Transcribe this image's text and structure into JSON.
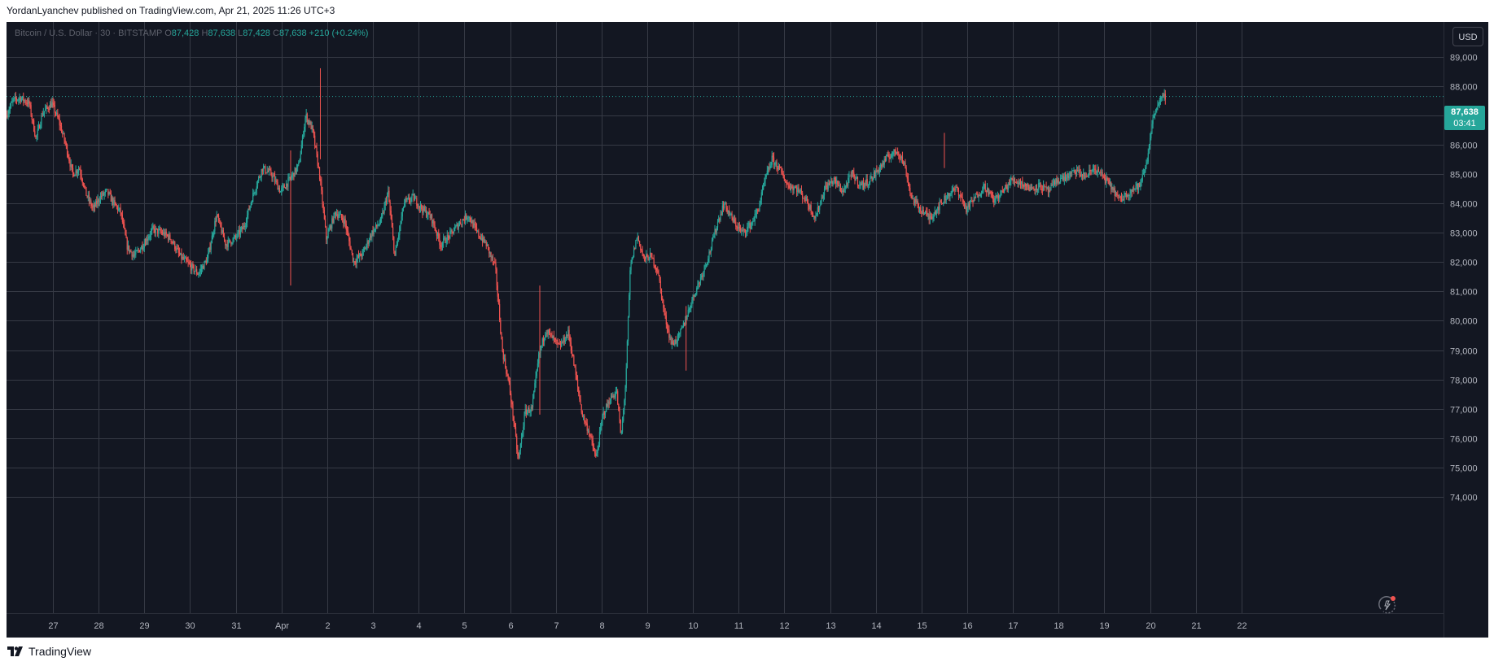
{
  "header": {
    "author": "YordanLyanchev",
    "published_text": "published on TradingView.com,",
    "datetime": "Apr 21, 2025 11:26 UTC+3"
  },
  "legend": {
    "symbol": "Bitcoin / U.S. Dollar · 30 · BITSTAMP",
    "o_label": "O",
    "o_value": "87,428",
    "h_label": "H",
    "h_value": "87,638",
    "l_label": "L",
    "l_value": "87,428",
    "c_label": "C",
    "c_value": "87,638",
    "change": "+210 (+0.24%)"
  },
  "currency_button": "USD",
  "price_tag": {
    "price": "87,638",
    "countdown": "03:41"
  },
  "footer": {
    "brand": "TradingView"
  },
  "colors": {
    "background": "#131722",
    "grid": "#363a45",
    "up": "#26a69a",
    "down": "#ef5350",
    "axis_text": "#b2b5be"
  },
  "icons": {
    "logo": "tradingview-logo-icon",
    "replay": "replay-icon"
  },
  "chart_data": {
    "type": "candlestick",
    "interval": "30",
    "ylim": [
      73300,
      89700
    ],
    "ytick_values": [
      74000,
      75000,
      76000,
      77000,
      78000,
      79000,
      80000,
      81000,
      82000,
      83000,
      84000,
      85000,
      86000,
      87000,
      88000,
      89000
    ],
    "ytick_labels": [
      "74,000",
      "75,000",
      "76,000",
      "77,000",
      "78,000",
      "79,000",
      "80,000",
      "81,000",
      "82,000",
      "83,000",
      "84,000",
      "85,000",
      "86,000",
      "87,000",
      "88,000",
      "89,000"
    ],
    "xlim": [
      -1.04,
      25.45
    ],
    "xticks": [
      {
        "pos": 0,
        "label": "27"
      },
      {
        "pos": 1,
        "label": "28"
      },
      {
        "pos": 2,
        "label": "29"
      },
      {
        "pos": 3,
        "label": "30"
      },
      {
        "pos": 4,
        "label": "31"
      },
      {
        "pos": 5,
        "label": "Apr"
      },
      {
        "pos": 6,
        "label": "2"
      },
      {
        "pos": 7,
        "label": "3"
      },
      {
        "pos": 8,
        "label": "4"
      },
      {
        "pos": 9,
        "label": "5"
      },
      {
        "pos": 10,
        "label": "6"
      },
      {
        "pos": 11,
        "label": "7"
      },
      {
        "pos": 12,
        "label": "8"
      },
      {
        "pos": 13,
        "label": "9"
      },
      {
        "pos": 14,
        "label": "10"
      },
      {
        "pos": 15,
        "label": "11"
      },
      {
        "pos": 16,
        "label": "12"
      },
      {
        "pos": 17,
        "label": "13"
      },
      {
        "pos": 18,
        "label": "14"
      },
      {
        "pos": 19,
        "label": "15"
      },
      {
        "pos": 20,
        "label": "16"
      },
      {
        "pos": 21,
        "label": "17"
      },
      {
        "pos": 22,
        "label": "18"
      },
      {
        "pos": 23,
        "label": "19"
      },
      {
        "pos": 24,
        "label": "20"
      },
      {
        "pos": 25,
        "label": "21"
      },
      {
        "pos": 26,
        "label": "22"
      }
    ],
    "last_price": 87638,
    "price_path": [
      [
        -1.0,
        87000
      ],
      [
        -0.85,
        87500
      ],
      [
        -0.7,
        87600
      ],
      [
        -0.5,
        87400
      ],
      [
        -0.35,
        86200
      ],
      [
        -0.2,
        87100
      ],
      [
        0.0,
        87400
      ],
      [
        0.15,
        86800
      ],
      [
        0.3,
        86000
      ],
      [
        0.45,
        85000
      ],
      [
        0.6,
        85200
      ],
      [
        0.75,
        84300
      ],
      [
        0.9,
        83800
      ],
      [
        1.05,
        84200
      ],
      [
        1.2,
        84400
      ],
      [
        1.35,
        84000
      ],
      [
        1.5,
        83700
      ],
      [
        1.65,
        82500
      ],
      [
        1.8,
        82200
      ],
      [
        2.0,
        82600
      ],
      [
        2.2,
        83100
      ],
      [
        2.4,
        83000
      ],
      [
        2.6,
        82800
      ],
      [
        2.8,
        82200
      ],
      [
        3.0,
        81900
      ],
      [
        3.2,
        81600
      ],
      [
        3.4,
        82100
      ],
      [
        3.6,
        83600
      ],
      [
        3.8,
        82600
      ],
      [
        4.0,
        82800
      ],
      [
        4.2,
        83200
      ],
      [
        4.4,
        84300
      ],
      [
        4.6,
        85200
      ],
      [
        4.8,
        85000
      ],
      [
        5.0,
        84400
      ],
      [
        5.2,
        84800
      ],
      [
        5.4,
        85300
      ],
      [
        5.55,
        87000
      ],
      [
        5.7,
        86500
      ],
      [
        5.85,
        85000
      ],
      [
        6.0,
        82800
      ],
      [
        6.2,
        83700
      ],
      [
        6.4,
        83400
      ],
      [
        6.6,
        82000
      ],
      [
        6.8,
        82300
      ],
      [
        7.0,
        83000
      ],
      [
        7.2,
        83400
      ],
      [
        7.35,
        84400
      ],
      [
        7.5,
        82200
      ],
      [
        7.7,
        84000
      ],
      [
        7.9,
        84200
      ],
      [
        8.1,
        83800
      ],
      [
        8.3,
        83500
      ],
      [
        8.5,
        82600
      ],
      [
        8.7,
        82900
      ],
      [
        8.9,
        83300
      ],
      [
        9.1,
        83600
      ],
      [
        9.3,
        83000
      ],
      [
        9.5,
        82600
      ],
      [
        9.7,
        81800
      ],
      [
        9.85,
        79000
      ],
      [
        10.0,
        77800
      ],
      [
        10.1,
        76600
      ],
      [
        10.2,
        75200
      ],
      [
        10.35,
        76900
      ],
      [
        10.5,
        77000
      ],
      [
        10.65,
        78800
      ],
      [
        10.8,
        79700
      ],
      [
        10.95,
        79400
      ],
      [
        11.1,
        79100
      ],
      [
        11.3,
        79600
      ],
      [
        11.45,
        78200
      ],
      [
        11.6,
        76800
      ],
      [
        11.75,
        76200
      ],
      [
        11.9,
        75300
      ],
      [
        12.05,
        76800
      ],
      [
        12.2,
        77300
      ],
      [
        12.35,
        77600
      ],
      [
        12.45,
        76000
      ],
      [
        12.55,
        77900
      ],
      [
        12.65,
        81800
      ],
      [
        12.8,
        82900
      ],
      [
        12.95,
        82100
      ],
      [
        13.1,
        82200
      ],
      [
        13.25,
        81700
      ],
      [
        13.4,
        80200
      ],
      [
        13.55,
        79200
      ],
      [
        13.7,
        79400
      ],
      [
        13.85,
        80000
      ],
      [
        14.0,
        80700
      ],
      [
        14.2,
        81500
      ],
      [
        14.4,
        82400
      ],
      [
        14.55,
        83300
      ],
      [
        14.7,
        84000
      ],
      [
        14.9,
        83400
      ],
      [
        15.1,
        83000
      ],
      [
        15.3,
        83300
      ],
      [
        15.45,
        83800
      ],
      [
        15.6,
        84800
      ],
      [
        15.75,
        85500
      ],
      [
        15.9,
        85200
      ],
      [
        16.1,
        84600
      ],
      [
        16.3,
        84500
      ],
      [
        16.5,
        84100
      ],
      [
        16.7,
        83500
      ],
      [
        16.9,
        84500
      ],
      [
        17.1,
        84800
      ],
      [
        17.3,
        84400
      ],
      [
        17.5,
        85000
      ],
      [
        17.7,
        84600
      ],
      [
        17.9,
        84800
      ],
      [
        18.1,
        85200
      ],
      [
        18.3,
        85600
      ],
      [
        18.5,
        85800
      ],
      [
        18.65,
        85300
      ],
      [
        18.8,
        84200
      ],
      [
        19.0,
        83800
      ],
      [
        19.2,
        83500
      ],
      [
        19.4,
        83900
      ],
      [
        19.6,
        84300
      ],
      [
        19.8,
        84500
      ],
      [
        20.0,
        83800
      ],
      [
        20.2,
        84200
      ],
      [
        20.4,
        84600
      ],
      [
        20.6,
        84100
      ],
      [
        20.8,
        84400
      ],
      [
        21.0,
        84800
      ],
      [
        21.2,
        84700
      ],
      [
        21.4,
        84500
      ],
      [
        21.6,
        84600
      ],
      [
        21.8,
        84400
      ],
      [
        22.0,
        84800
      ],
      [
        22.2,
        84900
      ],
      [
        22.4,
        85100
      ],
      [
        22.6,
        84900
      ],
      [
        22.8,
        85200
      ],
      [
        23.0,
        84900
      ],
      [
        23.2,
        84500
      ],
      [
        23.35,
        84100
      ],
      [
        23.5,
        84300
      ],
      [
        23.65,
        84500
      ],
      [
        23.8,
        84600
      ],
      [
        23.95,
        85400
      ],
      [
        24.05,
        86600
      ],
      [
        24.15,
        87300
      ],
      [
        24.25,
        87500
      ],
      [
        24.35,
        87638
      ]
    ],
    "spikes": [
      {
        "x": 5.85,
        "high": 88600,
        "low": 85500
      },
      {
        "x": 5.2,
        "high": 85800,
        "low": 81200
      },
      {
        "x": 10.65,
        "high": 81200,
        "low": 76800
      },
      {
        "x": 13.85,
        "high": 80500,
        "low": 78300
      },
      {
        "x": 19.5,
        "high": 86400,
        "low": 85200
      }
    ]
  }
}
